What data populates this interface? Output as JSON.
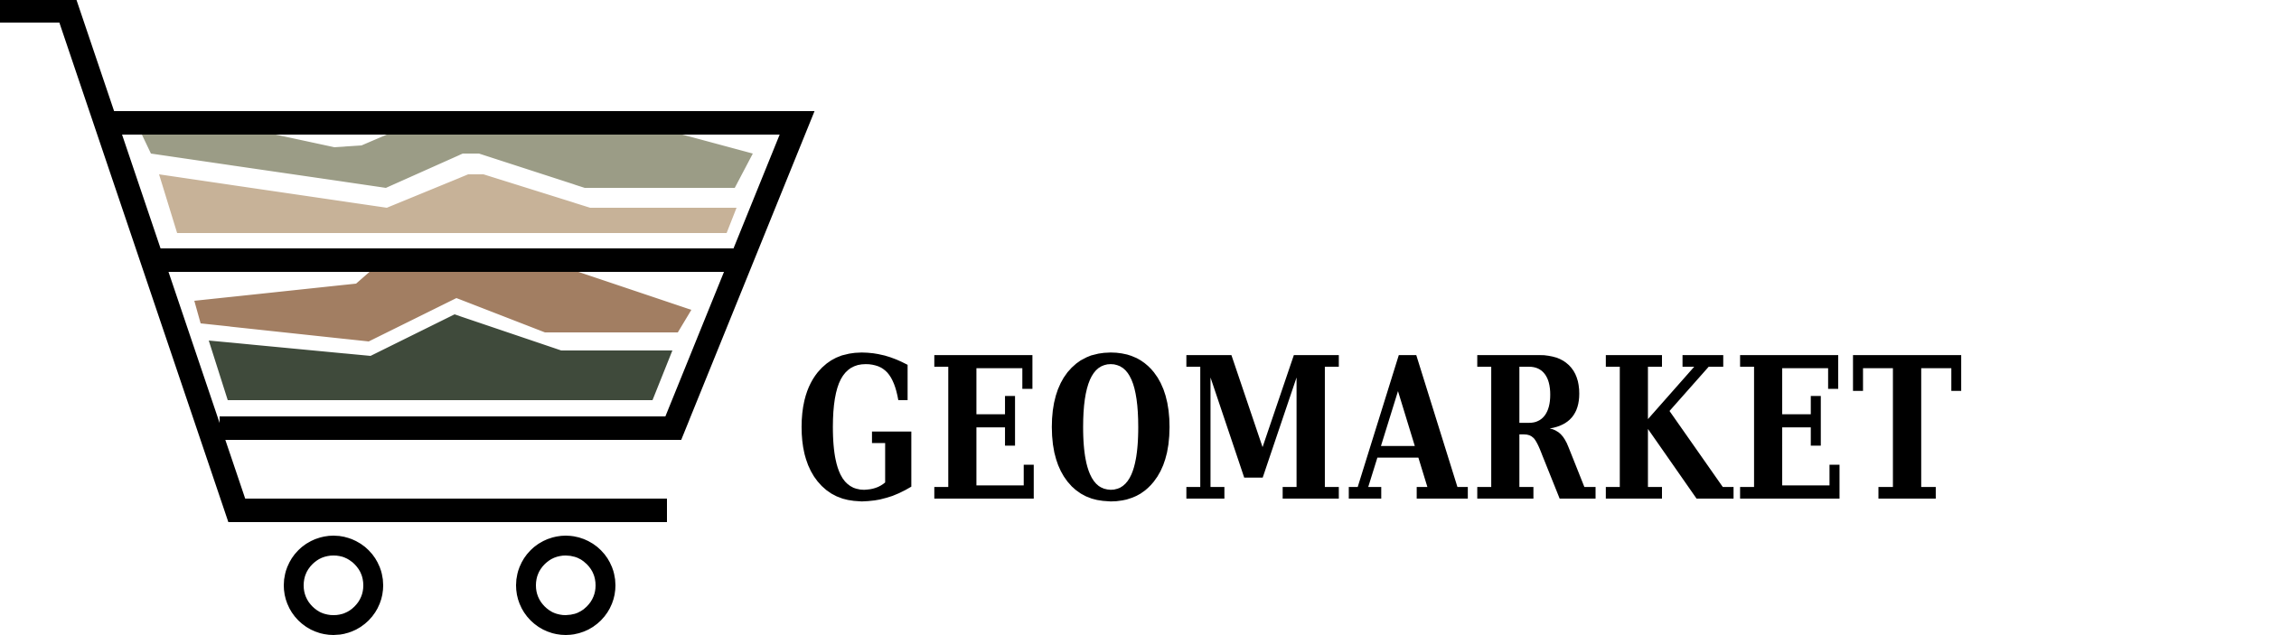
{
  "brand": {
    "name": "GEOMARKET"
  },
  "logo": {
    "icon": "shopping-cart-icon",
    "strata_icon": "soil-strata-icon",
    "colors": {
      "outline": "#000000",
      "layer_sage": "#9b9c86",
      "layer_sand": "#c7b298",
      "layer_clay": "#a27e62",
      "layer_moss": "#3f4a3b"
    }
  }
}
